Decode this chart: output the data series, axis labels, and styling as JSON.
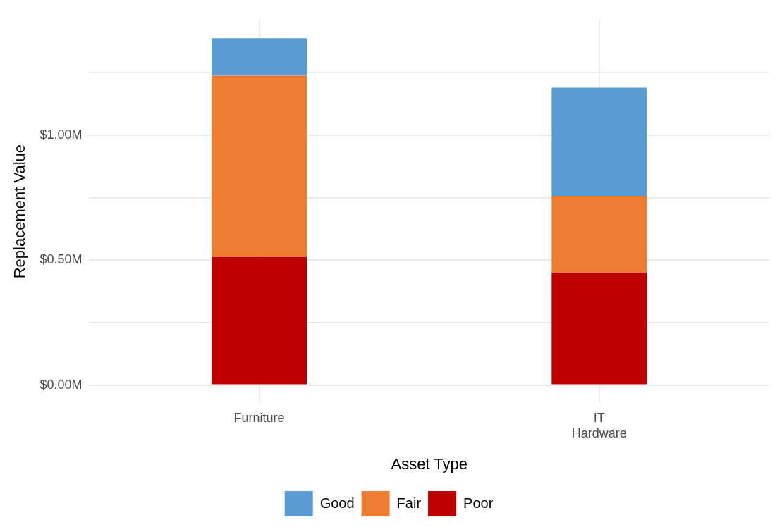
{
  "chart_data": {
    "type": "bar",
    "xlabel": "Asset Type",
    "ylabel": "Replacement Value",
    "categories": [
      "Furniture",
      "IT Hardware"
    ],
    "stacked": true,
    "series": [
      {
        "name": "Poor",
        "color": "#c00000",
        "values": [
          0.513,
          0.449
        ]
      },
      {
        "name": "Fair",
        "color": "#ed7d31",
        "values": [
          0.725,
          0.308
        ]
      },
      {
        "name": "Good",
        "color": "#5b9bd5",
        "values": [
          0.15,
          0.433
        ]
      }
    ],
    "ylim": [
      -0.07,
      1.46
    ],
    "yticks": [
      {
        "value": 0,
        "label": "$0.00M"
      },
      {
        "value": 0.25,
        "label": null
      },
      {
        "value": 0.5,
        "label": "$0.50M"
      },
      {
        "value": 0.75,
        "label": null
      },
      {
        "value": 1,
        "label": "$1.00M"
      },
      {
        "value": 1.25,
        "label": null
      }
    ],
    "grid": true,
    "legend": "bottom"
  }
}
